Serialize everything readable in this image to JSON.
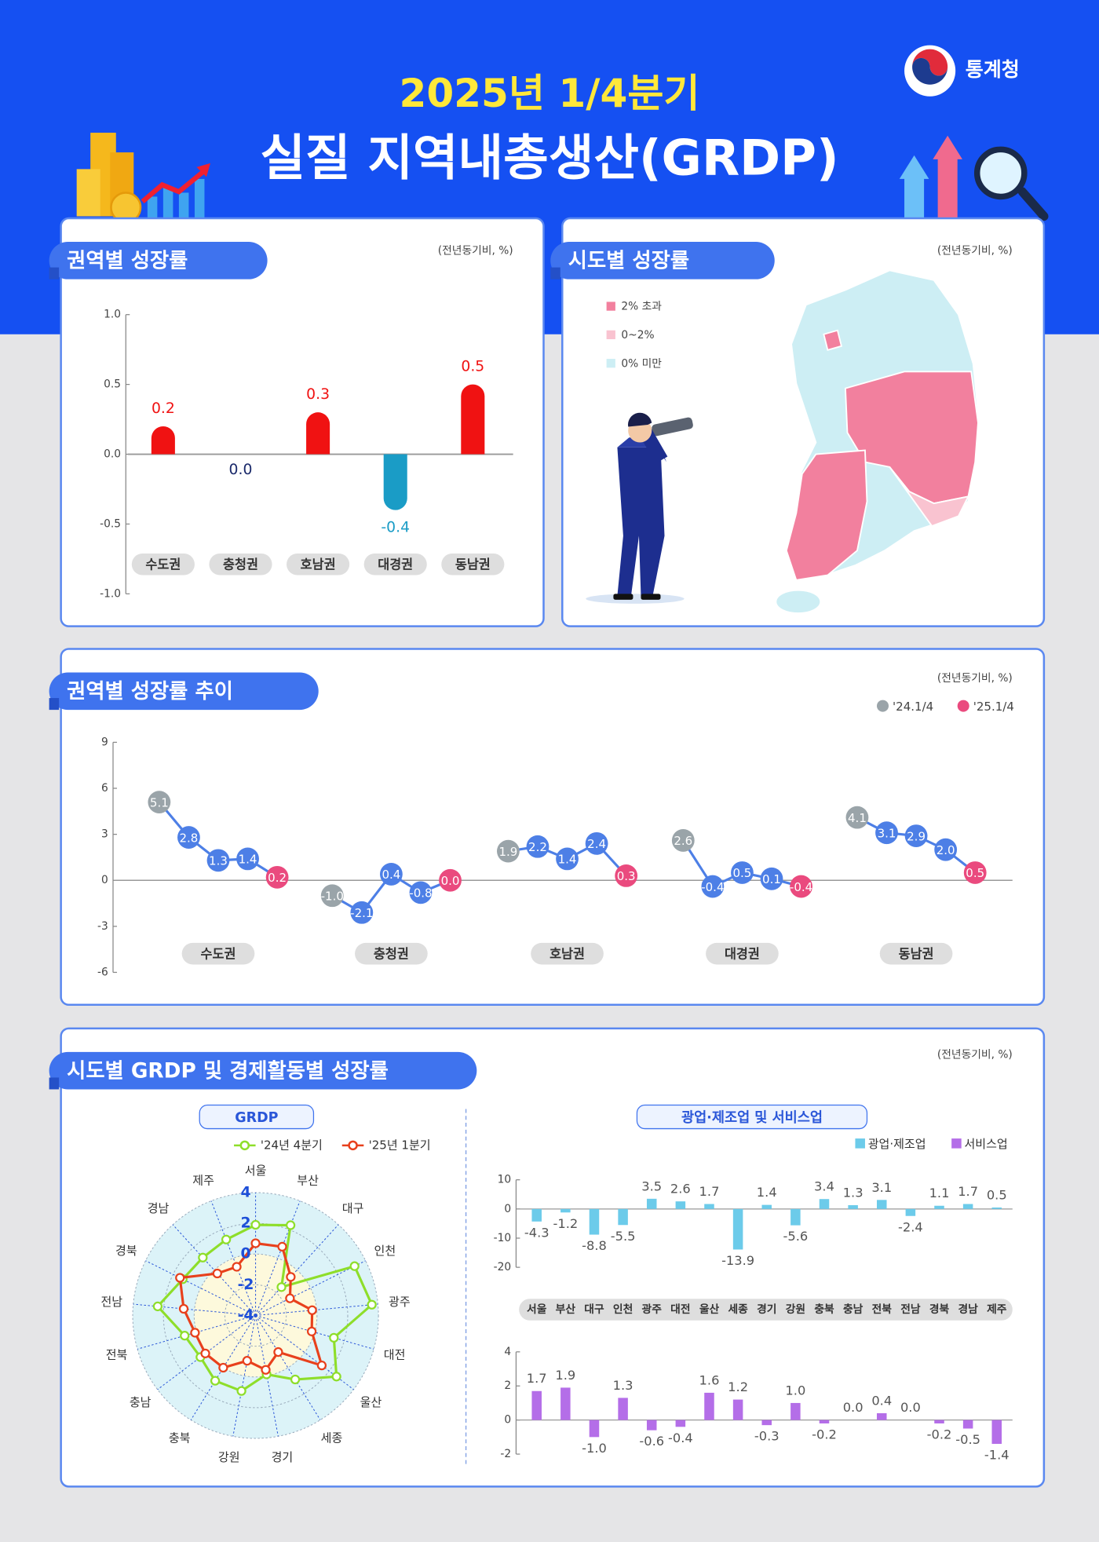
{
  "header": {
    "subtitle": "2025년 1/4분기",
    "title": "실질 지역내총생산(GRDP)",
    "agency": "통계청"
  },
  "chart_data": [
    {
      "type": "bar",
      "title": "권역별 성장률",
      "unit": "(전년동기비, %)",
      "categories": [
        "수도권",
        "충청권",
        "호남권",
        "대경권",
        "동남권"
      ],
      "values": [
        0.2,
        0.0,
        0.3,
        -0.4,
        0.5
      ],
      "value_labels": [
        "0.2",
        "0.0",
        "0.3",
        "-0.4",
        "0.5"
      ],
      "colors": [
        "#f01212",
        "#f01212",
        "#f01212",
        "#1a9cc6",
        "#f01212"
      ],
      "ylim": [
        -1,
        1
      ],
      "yticks": [
        {
          "value": -1,
          "label": "-1.0"
        },
        {
          "value": -0.5,
          "label": "-0.5"
        },
        {
          "value": 0,
          "label": "0.0"
        },
        {
          "value": 0.5,
          "label": "0.5"
        },
        {
          "value": 1,
          "label": "1.0"
        }
      ]
    },
    {
      "type": "map",
      "title": "시도별 성장률",
      "unit": "(전년동기비, %)",
      "legend": [
        {
          "name": "2% 초과",
          "color": "#f2809e"
        },
        {
          "name": "0~2%",
          "color": "#f9c3d0"
        },
        {
          "name": "0% 미만",
          "color": "#cdeef4"
        }
      ]
    },
    {
      "type": "line",
      "title": "권역별 성장률 추이",
      "unit": "(전년동기비, %)",
      "legend": [
        {
          "name": "'24.1/4",
          "color": "#9aa4a9"
        },
        {
          "name": "'25.1/4",
          "color": "#ea4a7e"
        }
      ],
      "color": "#4d7fe6",
      "groups": [
        {
          "name": "수도권",
          "values": [
            5.1,
            2.8,
            1.3,
            1.4,
            0.2
          ],
          "value_labels": [
            "5.1",
            "2.8",
            "1.3",
            "1.4",
            "0.2"
          ]
        },
        {
          "name": "충청권",
          "values": [
            -1.0,
            -2.1,
            0.4,
            -0.8,
            0.0
          ],
          "value_labels": [
            "-1.0",
            "-2.1",
            "0.4",
            "-0.8",
            "0.0"
          ]
        },
        {
          "name": "호남권",
          "values": [
            1.9,
            2.2,
            1.4,
            2.4,
            0.3
          ],
          "value_labels": [
            "1.9",
            "2.2",
            "1.4",
            "2.4",
            "0.3"
          ]
        },
        {
          "name": "대경권",
          "values": [
            2.6,
            -0.4,
            0.5,
            0.1,
            -0.4
          ],
          "value_labels": [
            "2.6",
            "-0.4",
            "0.5",
            "0.1",
            "-0.4"
          ]
        },
        {
          "name": "동남권",
          "values": [
            4.1,
            3.1,
            2.9,
            2.0,
            0.5
          ],
          "value_labels": [
            "4.1",
            "3.1",
            "2.9",
            "2.0",
            "0.5"
          ]
        }
      ],
      "ylim": [
        -6,
        9
      ],
      "yticks": [
        -6,
        -3,
        0,
        3,
        6,
        9
      ]
    },
    {
      "type": "radar",
      "section_title": "시도별 GRDP 및 경제활동별 성장률",
      "unit": "(전년동기비, %)",
      "title": "GRDP",
      "categories": [
        "서울",
        "부산",
        "대구",
        "인천",
        "광주",
        "대전",
        "울산",
        "세종",
        "경기",
        "강원",
        "충북",
        "충남",
        "전북",
        "전남",
        "경북",
        "경남",
        "제주"
      ],
      "series": [
        {
          "name": "'24년 4분기",
          "color": "#8ede2a",
          "values": [
            1.9,
            2.3,
            -1.5,
            3.2,
            3.6,
            1.3,
            2.6,
            0.9,
            -0.1,
            1.0,
            1.0,
            0.5,
            0.8,
            2.4,
            1.3,
            1.1,
            1.3
          ]
        },
        {
          "name": "'25년 1분기",
          "color": "#e8401c",
          "values": [
            0.7,
            0.8,
            -0.6,
            -1.5,
            -0.3,
            -0.2,
            1.4,
            -1.2,
            -0.4,
            -1.0,
            0.0,
            0.1,
            0.1,
            0.7,
            1.5,
            -0.3,
            -0.6
          ]
        }
      ],
      "ylim": [
        -4,
        4
      ],
      "yticks": [
        -4,
        -2,
        0,
        2,
        4
      ]
    },
    {
      "type": "bar",
      "title": "광업·제조업 및 서비스업",
      "categories": [
        "서울",
        "부산",
        "대구",
        "인천",
        "광주",
        "대전",
        "울산",
        "세종",
        "경기",
        "강원",
        "충북",
        "충남",
        "전북",
        "전남",
        "경북",
        "경남",
        "제주"
      ],
      "series": [
        {
          "name": "광업·제조업",
          "color": "#6ccbea",
          "values": [
            -4.3,
            -1.2,
            -8.8,
            -5.5,
            3.5,
            2.6,
            1.7,
            -13.9,
            1.4,
            -5.6,
            3.4,
            1.3,
            3.1,
            -2.4,
            1.1,
            1.7,
            0.5
          ],
          "ylim": [
            -20,
            10
          ],
          "yticks": [
            -20,
            -10,
            0,
            10
          ]
        },
        {
          "name": "서비스업",
          "color": "#b46ee8",
          "values": [
            1.7,
            1.9,
            -1.0,
            1.3,
            -0.6,
            -0.4,
            1.6,
            1.2,
            -0.3,
            1.0,
            -0.2,
            0.0,
            0.4,
            0.0,
            -0.2,
            -0.5,
            -1.4
          ],
          "value_labels": [
            "1.7",
            "1.9",
            "-1.0",
            "1.3",
            "-0.6",
            "-0.4",
            "1.6",
            "1.2",
            "-0.3",
            "1.0",
            "-0.2",
            "0.0",
            "0.4",
            "0.0",
            "-0.2",
            "-0.5",
            "-1.4"
          ],
          "ylim": [
            -2,
            4
          ],
          "yticks": [
            -2,
            0,
            2,
            4
          ]
        }
      ]
    }
  ]
}
